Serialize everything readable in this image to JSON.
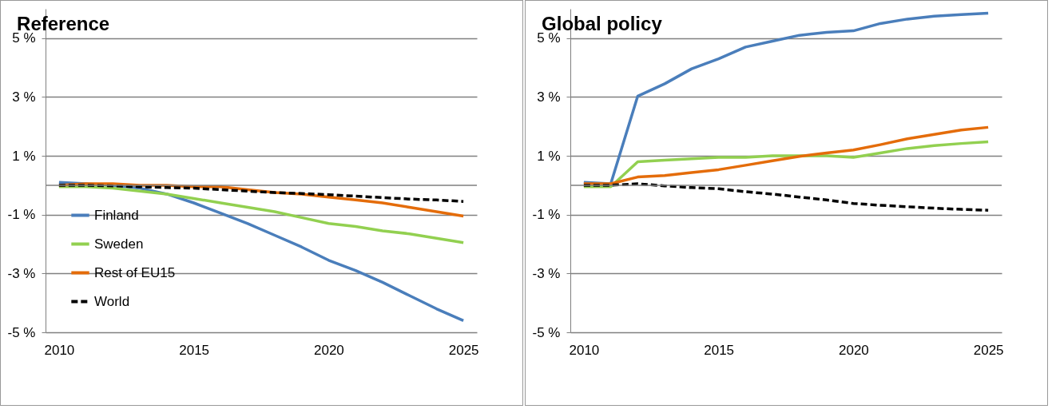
{
  "chart_data": [
    {
      "type": "line",
      "title": "Reference",
      "x": [
        2010,
        2011,
        2012,
        2013,
        2014,
        2015,
        2016,
        2017,
        2018,
        2019,
        2020,
        2021,
        2022,
        2023,
        2024,
        2025
      ],
      "xlim": [
        2009.5,
        2025.5
      ],
      "xticks": [
        2010,
        2015,
        2020,
        2025
      ],
      "ylim": [
        -5,
        6
      ],
      "yticks": [
        {
          "value": 5,
          "label": "5 %"
        },
        {
          "value": 3,
          "label": "3 %"
        },
        {
          "value": 1,
          "label": "1 %"
        },
        {
          "value": -1,
          "label": "-1 %"
        },
        {
          "value": -3,
          "label": "-3 %"
        },
        {
          "value": -5,
          "label": "-5 %"
        }
      ],
      "grid": "y",
      "legend": "bottom left",
      "ref_lines": [
        {
          "axis": "y",
          "value": 0,
          "color": "#808080"
        }
      ],
      "series": [
        {
          "name": "Finland",
          "color": "#4a7ebb",
          "line_style": "solid",
          "values": [
            0.1,
            0.05,
            0.0,
            -0.1,
            -0.3,
            -0.6,
            -0.95,
            -1.3,
            -1.7,
            -2.1,
            -2.55,
            -2.9,
            -3.3,
            -3.75,
            -4.2,
            -4.6
          ]
        },
        {
          "name": "Sweden",
          "color": "#92d050",
          "line_style": "solid",
          "values": [
            -0.05,
            -0.05,
            -0.1,
            -0.2,
            -0.3,
            -0.45,
            -0.6,
            -0.75,
            -0.9,
            -1.1,
            -1.3,
            -1.4,
            -1.55,
            -1.65,
            -1.8,
            -1.95
          ]
        },
        {
          "name": "Rest of EU15",
          "color": "#e46c0a",
          "line_style": "solid",
          "values": [
            0.0,
            0.05,
            0.05,
            0.0,
            0.0,
            -0.05,
            -0.05,
            -0.15,
            -0.25,
            -0.3,
            -0.4,
            -0.5,
            -0.6,
            -0.75,
            -0.9,
            -1.05
          ]
        },
        {
          "name": "World",
          "color": "#000000",
          "line_style": "dashed",
          "values": [
            0.0,
            0.0,
            -0.02,
            -0.05,
            -0.08,
            -0.1,
            -0.15,
            -0.2,
            -0.25,
            -0.28,
            -0.32,
            -0.37,
            -0.42,
            -0.47,
            -0.5,
            -0.55
          ]
        }
      ]
    },
    {
      "type": "line",
      "title": "Global policy",
      "x": [
        2010,
        2011,
        2012,
        2013,
        2014,
        2015,
        2016,
        2017,
        2018,
        2019,
        2020,
        2021,
        2022,
        2023,
        2024,
        2025
      ],
      "xlim": [
        2009.5,
        2025.5
      ],
      "xticks": [
        2010,
        2015,
        2020,
        2025
      ],
      "ylim": [
        -5,
        6
      ],
      "yticks": [
        {
          "value": 5,
          "label": "5 %"
        },
        {
          "value": 3,
          "label": "3 %"
        },
        {
          "value": 1,
          "label": "1 %"
        },
        {
          "value": -1,
          "label": "-1 %"
        },
        {
          "value": -3,
          "label": "-3 %"
        },
        {
          "value": -5,
          "label": "-5 %"
        }
      ],
      "grid": "y",
      "legend": false,
      "ref_lines": [
        {
          "axis": "y",
          "value": 0,
          "color": "#808080"
        }
      ],
      "series": [
        {
          "color": "#4a7ebb",
          "line_style": "solid",
          "values": [
            0.1,
            0.05,
            3.03,
            3.45,
            3.96,
            4.3,
            4.7,
            4.9,
            5.1,
            5.2,
            5.25,
            5.5,
            5.65,
            5.75,
            5.8,
            5.85
          ]
        },
        {
          "color": "#92d050",
          "line_style": "solid",
          "values": [
            -0.05,
            -0.05,
            0.8,
            0.85,
            0.9,
            0.95,
            0.95,
            1.0,
            1.0,
            1.0,
            0.95,
            1.1,
            1.25,
            1.35,
            1.42,
            1.48
          ]
        },
        {
          "color": "#e46c0a",
          "line_style": "solid",
          "values": [
            0.05,
            0.05,
            0.28,
            0.33,
            0.43,
            0.53,
            0.68,
            0.83,
            0.98,
            1.1,
            1.2,
            1.38,
            1.58,
            1.73,
            1.88,
            1.97
          ]
        },
        {
          "color": "#000000",
          "line_style": "dashed",
          "values": [
            0.0,
            0.0,
            0.05,
            -0.02,
            -0.08,
            -0.12,
            -0.22,
            -0.3,
            -0.4,
            -0.5,
            -0.62,
            -0.68,
            -0.73,
            -0.78,
            -0.82,
            -0.85
          ]
        }
      ]
    }
  ]
}
